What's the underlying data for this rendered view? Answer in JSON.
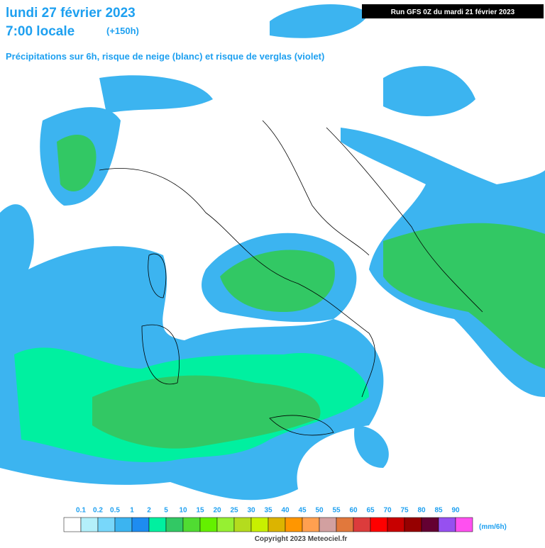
{
  "header": {
    "date": "lundi 27 février 2023",
    "time": "7:00 locale",
    "lead": "(+150h)",
    "subtitle": "Précipitations sur 6h, risque de neige (blanc) et risque de verglas (violet)",
    "run": "Run GFS 0Z du mardi 21 février 2023"
  },
  "legend": {
    "labels": [
      0.1,
      0.2,
      0.5,
      1,
      2,
      5,
      10,
      15,
      20,
      25,
      30,
      35,
      40,
      45,
      50,
      55,
      60,
      65,
      70,
      75,
      80,
      85,
      90
    ],
    "colors": [
      "#ffffff",
      "#b4f0fa",
      "#78d7fa",
      "#3cb4f0",
      "#1e8cf0",
      "#00f0a0",
      "#32c864",
      "#50dc32",
      "#64f000",
      "#96f032",
      "#b4dc1e",
      "#c8f000",
      "#dcb400",
      "#ff9600",
      "#ffa050",
      "#d2a0a0",
      "#e1783c",
      "#dc3c3c",
      "#ff0000",
      "#c80000",
      "#960000",
      "#640032",
      "#9650f0",
      "#ff50f0"
    ],
    "unit": "(mm/6h)"
  },
  "footer": {
    "copyright": "Copyright 2023 Meteociel.fr"
  }
}
